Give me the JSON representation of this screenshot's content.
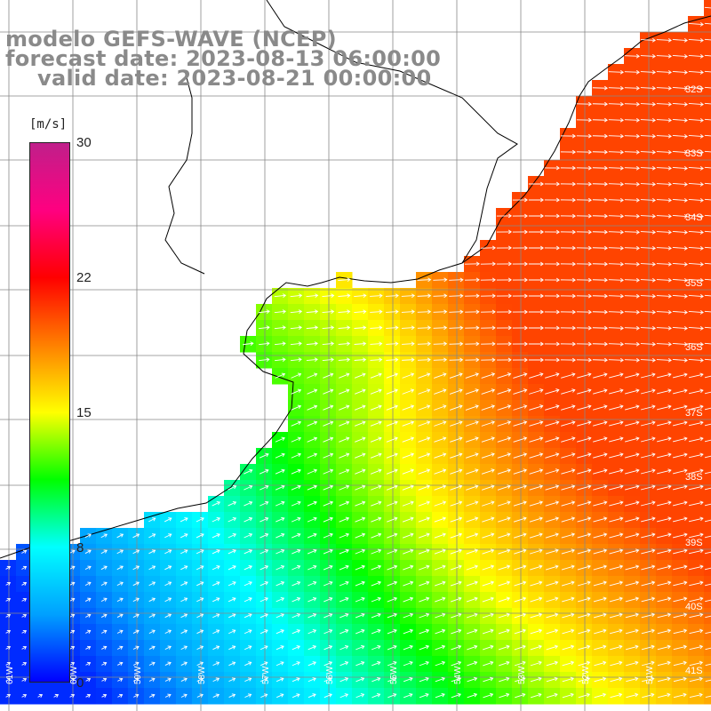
{
  "title": {
    "model": "modelo GEFS-WAVE (NCEP)",
    "forecast": "forecast date: 2023-08-13 06:00:00",
    "valid": "valid date: 2023-08-21 00:00:00"
  },
  "colorbar": {
    "unit": "[m/s]",
    "min": 0,
    "max": 30,
    "ticks": [
      "30",
      "22",
      "15",
      "8",
      "0"
    ],
    "tick_values": [
      30,
      22.5,
      15,
      7.5,
      0
    ],
    "colors": [
      "#0000ff",
      "#00a0ff",
      "#00ffff",
      "#00ff00",
      "#ffff00",
      "#ff8000",
      "#ff0000",
      "#ff0080",
      "#c01f8a"
    ]
  },
  "lat_labels": [
    "32S",
    "33S",
    "34S",
    "35S",
    "36S",
    "37S",
    "38S",
    "39S",
    "40S",
    "41S"
  ],
  "lon_labels": [
    "61W",
    "60W",
    "59W",
    "58W",
    "57W",
    "56W",
    "55W",
    "54W",
    "53W",
    "52W",
    "51W"
  ],
  "map_colors": {
    "land": "#ffffff",
    "grid": "#888888",
    "coast": "#000000",
    "arrow": "#ffffff"
  }
}
